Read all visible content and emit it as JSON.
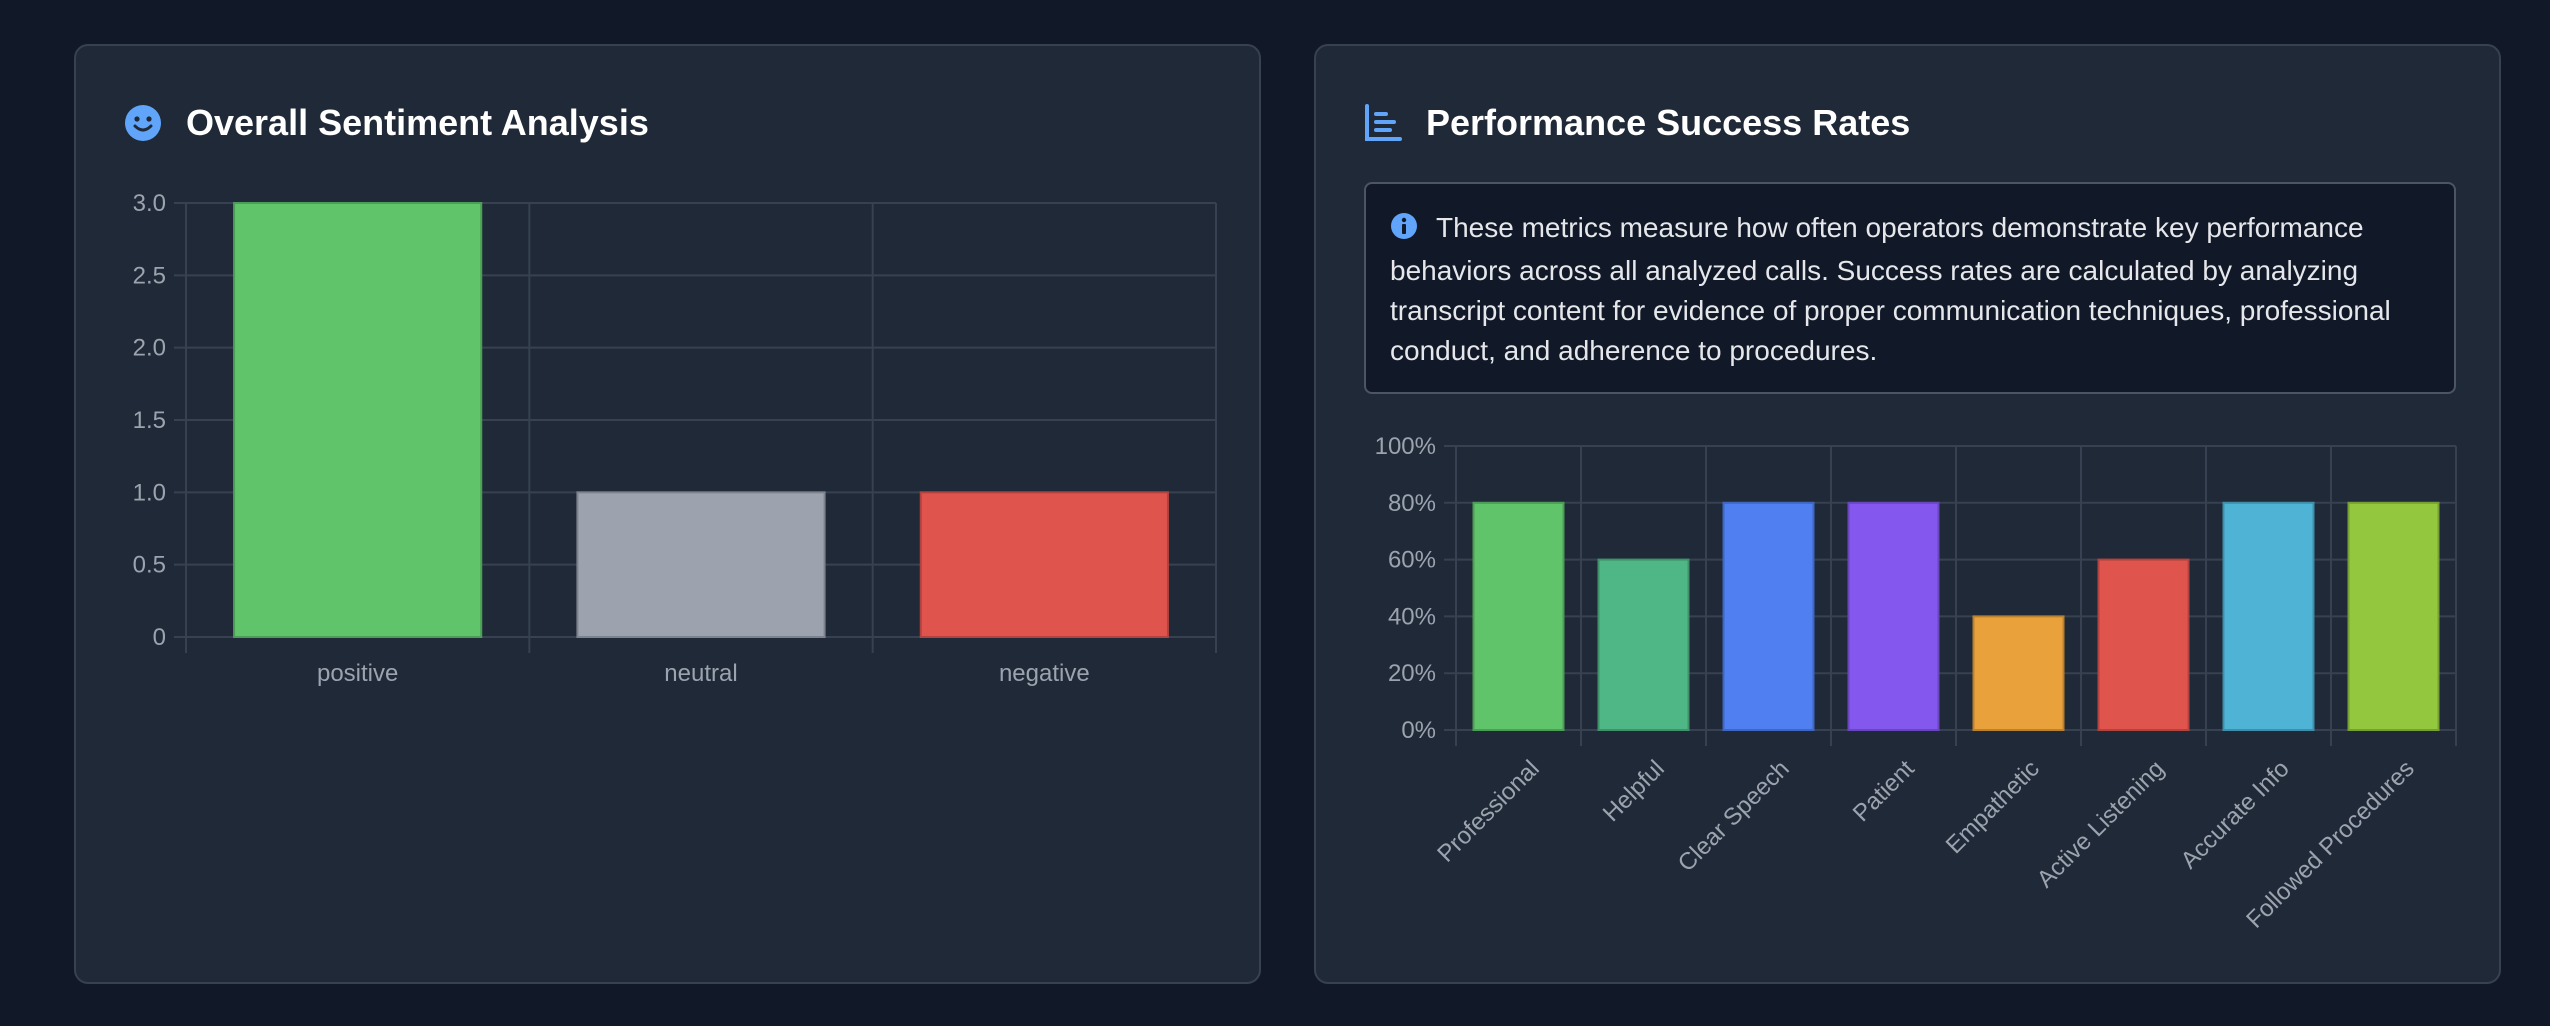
{
  "left_card": {
    "title": "Overall Sentiment Analysis",
    "icon": "smiley-icon"
  },
  "right_card": {
    "title": "Performance Success Rates",
    "icon": "bar-chart-icon",
    "info_text": "These metrics measure how often operators demonstrate key performance behaviors across all analyzed calls. Success rates are calculated by analyzing transcript content for evidence of proper communication techniques, professional conduct, and adherence to procedures."
  },
  "colors": {
    "background": "#111827",
    "card": "#1f2937",
    "accent": "#60a5fa"
  },
  "chart_data": [
    {
      "type": "bar",
      "title": "Overall Sentiment Analysis",
      "categories": [
        "positive",
        "neutral",
        "negative"
      ],
      "values": [
        3,
        1,
        1
      ],
      "colors": [
        "#5fc46a",
        "#9ca3af",
        "#e0544e"
      ],
      "ylim": [
        0,
        3
      ],
      "yticks": [
        0,
        0.5,
        1,
        1.5,
        2,
        2.5,
        3
      ],
      "ytick_labels": [
        "0",
        "0.5",
        "1.0",
        "1.5",
        "2.0",
        "2.5",
        "3.0"
      ],
      "grid": true,
      "legend": "none"
    },
    {
      "type": "bar",
      "title": "Performance Success Rates",
      "categories": [
        "Professional",
        "Helpful",
        "Clear Speech",
        "Patient",
        "Empathetic",
        "Active Listening",
        "Accurate Info",
        "Followed Procedures"
      ],
      "values": [
        80,
        60,
        80,
        80,
        40,
        60,
        80,
        80
      ],
      "colors": [
        "#5fc46a",
        "#4fb685",
        "#4f7ff0",
        "#8457ee",
        "#e9a23b",
        "#e0544e",
        "#4fb3d6",
        "#93c83e"
      ],
      "ylim": [
        0,
        100
      ],
      "yticks": [
        0,
        20,
        40,
        60,
        80,
        100
      ],
      "ytick_labels": [
        "0%",
        "20%",
        "40%",
        "60%",
        "80%",
        "100%"
      ],
      "grid": true,
      "legend": "none"
    }
  ]
}
